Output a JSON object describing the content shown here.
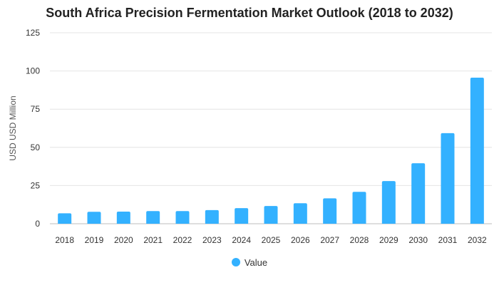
{
  "chart_data": {
    "type": "bar",
    "title": "South Africa Precision Fermentation Market Outlook (2018 to 2032)",
    "xlabel": "",
    "ylabel": "USD USD Million",
    "categories": [
      "2018",
      "2019",
      "2020",
      "2021",
      "2022",
      "2023",
      "2024",
      "2025",
      "2026",
      "2027",
      "2028",
      "2029",
      "2030",
      "2031",
      "2032"
    ],
    "series": [
      {
        "name": "Value",
        "values": [
          6.8,
          7.8,
          7.9,
          8.3,
          8.3,
          8.9,
          10.2,
          11.6,
          13.4,
          16.6,
          20.9,
          27.9,
          39.6,
          59.3,
          95.6
        ]
      }
    ],
    "ylim": [
      0,
      125
    ],
    "yticks": [
      0,
      25,
      50,
      75,
      100,
      125
    ],
    "grid": true,
    "legend_position": "bottom",
    "colors": {
      "bar": "#33b1ff",
      "grid": "#e4e4e4",
      "text": "#333333"
    }
  }
}
